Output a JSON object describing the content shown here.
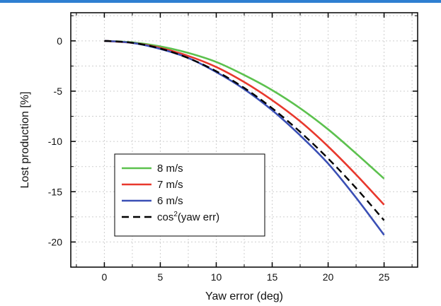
{
  "colors": {
    "header_rule": "#2e7fd1"
  },
  "chart_data": {
    "type": "line",
    "xlabel": "Yaw error (deg)",
    "ylabel": "Lost production [%]",
    "xlim": [
      -3,
      28
    ],
    "ylim": [
      -22.5,
      2.8
    ],
    "xticks": [
      0,
      5,
      10,
      15,
      20,
      25
    ],
    "yticks": [
      0,
      -5,
      -10,
      -15,
      -20
    ],
    "grid": true,
    "legend_position": "lower-left",
    "x": [
      0,
      2.5,
      5,
      7.5,
      10,
      12.5,
      15,
      17.5,
      20,
      22.5,
      25
    ],
    "series": [
      {
        "name": "8 m/s",
        "color": "#5cc14e",
        "dash": "solid",
        "values": [
          0,
          -0.15,
          -0.55,
          -1.2,
          -2.1,
          -3.4,
          -4.9,
          -6.7,
          -8.8,
          -11.2,
          -13.7
        ]
      },
      {
        "name": "7 m/s",
        "color": "#e8382d",
        "dash": "solid",
        "values": [
          0,
          -0.2,
          -0.7,
          -1.5,
          -2.6,
          -4.1,
          -5.9,
          -8.0,
          -10.5,
          -13.3,
          -16.3
        ]
      },
      {
        "name": "6 m/s",
        "color": "#3a4fb5",
        "dash": "solid",
        "values": [
          0,
          -0.2,
          -0.8,
          -1.7,
          -3.1,
          -4.8,
          -6.9,
          -9.4,
          -12.2,
          -15.6,
          -19.3
        ]
      },
      {
        "name": "cos²(yaw err)",
        "legend_main": "cos",
        "legend_sup": "2",
        "legend_rest": "(yaw err)",
        "color": "#000000",
        "dash": "dashed",
        "values": [
          0,
          -0.19,
          -0.76,
          -1.71,
          -3.02,
          -4.68,
          -6.7,
          -9.05,
          -11.7,
          -14.64,
          -17.85
        ]
      }
    ]
  }
}
